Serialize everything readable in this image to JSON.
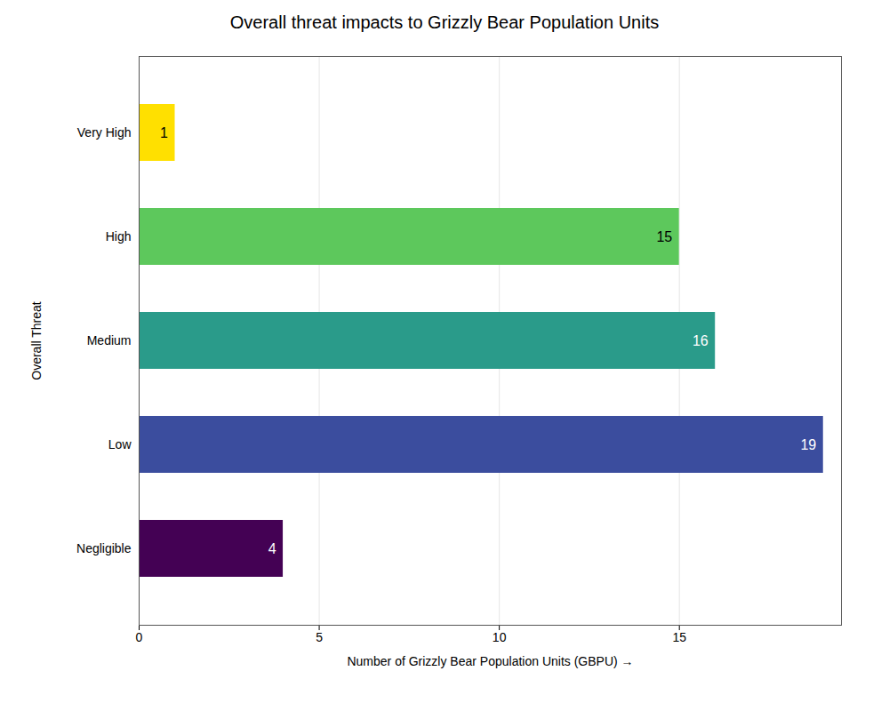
{
  "chart_data": {
    "type": "bar",
    "orientation": "horizontal",
    "title": "Overall threat impacts to Grizzly Bear Population Units",
    "categories": [
      "Very High",
      "High",
      "Medium",
      "Low",
      "Negligible"
    ],
    "values": [
      1,
      15,
      16,
      19,
      4
    ],
    "colors": [
      "#FFE000",
      "#5DC85C",
      "#2A9B8A",
      "#3B4D9E",
      "#440154"
    ],
    "xlabel": "Number of Grizzly Bear Population Units (GBPU)",
    "ylabel": "Overall Threat",
    "xlim": [
      0,
      19.5
    ],
    "xticks": [
      0,
      5,
      10,
      15
    ],
    "grid": true,
    "data_labels": true
  }
}
